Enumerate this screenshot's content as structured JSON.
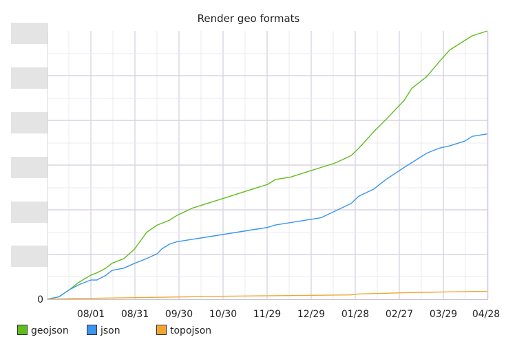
{
  "chart_data": {
    "type": "line",
    "title": "Render geo formats",
    "xlabel": "",
    "ylabel": "",
    "x_ticks": [
      "08/01",
      "08/31",
      "09/30",
      "10/30",
      "11/29",
      "12/29",
      "01/28",
      "02/27",
      "03/29",
      "04/28"
    ],
    "y_ticks": [
      "0"
    ],
    "x_range": [
      -21,
      270
    ],
    "ylim": [
      0,
      112
    ],
    "grid": true,
    "legend_position": "bottom-left",
    "series": [
      {
        "name": "geojson",
        "color": "#5fbd1c",
        "points": [
          [
            -21,
            0
          ],
          [
            -13,
            1
          ],
          [
            -6,
            4
          ],
          [
            0,
            7
          ],
          [
            8,
            10
          ],
          [
            12,
            11
          ],
          [
            18,
            13
          ],
          [
            22,
            15
          ],
          [
            30,
            17
          ],
          [
            37,
            21
          ],
          [
            45,
            28
          ],
          [
            52,
            31
          ],
          [
            60,
            33
          ],
          [
            65,
            35
          ],
          [
            75,
            38
          ],
          [
            85,
            40
          ],
          [
            95,
            42
          ],
          [
            105,
            44
          ],
          [
            115,
            46
          ],
          [
            125,
            48
          ],
          [
            130,
            50
          ],
          [
            140,
            51
          ],
          [
            150,
            53
          ],
          [
            160,
            55
          ],
          [
            170,
            57
          ],
          [
            180,
            60
          ],
          [
            185,
            63
          ],
          [
            195,
            70
          ],
          [
            203,
            75
          ],
          [
            215,
            83
          ],
          [
            220,
            88
          ],
          [
            230,
            93
          ],
          [
            238,
            99
          ],
          [
            245,
            104
          ],
          [
            255,
            108
          ],
          [
            260,
            110
          ],
          [
            270,
            112
          ]
        ]
      },
      {
        "name": "json",
        "color": "#3995ee",
        "points": [
          [
            -21,
            0
          ],
          [
            -13,
            1
          ],
          [
            -6,
            4
          ],
          [
            0,
            6
          ],
          [
            8,
            8
          ],
          [
            12,
            8
          ],
          [
            18,
            10
          ],
          [
            22,
            12
          ],
          [
            30,
            13
          ],
          [
            37,
            15
          ],
          [
            45,
            17
          ],
          [
            52,
            19
          ],
          [
            55,
            21
          ],
          [
            60,
            23
          ],
          [
            65,
            24
          ],
          [
            75,
            25
          ],
          [
            85,
            26
          ],
          [
            95,
            27
          ],
          [
            105,
            28
          ],
          [
            115,
            29
          ],
          [
            125,
            30
          ],
          [
            130,
            31
          ],
          [
            140,
            32
          ],
          [
            150,
            33
          ],
          [
            160,
            34
          ],
          [
            170,
            37
          ],
          [
            180,
            40
          ],
          [
            185,
            43
          ],
          [
            195,
            46
          ],
          [
            203,
            50
          ],
          [
            215,
            55
          ],
          [
            220,
            57
          ],
          [
            230,
            61
          ],
          [
            238,
            63
          ],
          [
            245,
            64
          ],
          [
            255,
            66
          ],
          [
            260,
            68
          ],
          [
            270,
            69
          ]
        ]
      },
      {
        "name": "topojson",
        "color": "#f1a631",
        "points": [
          [
            -21,
            0
          ],
          [
            0,
            0.3
          ],
          [
            30,
            0.6
          ],
          [
            60,
            0.9
          ],
          [
            90,
            1.2
          ],
          [
            120,
            1.4
          ],
          [
            150,
            1.6
          ],
          [
            180,
            1.8
          ],
          [
            185,
            2.2
          ],
          [
            203,
            2.5
          ],
          [
            220,
            2.8
          ],
          [
            238,
            3.0
          ],
          [
            255,
            3.2
          ],
          [
            270,
            3.3
          ]
        ]
      }
    ]
  }
}
